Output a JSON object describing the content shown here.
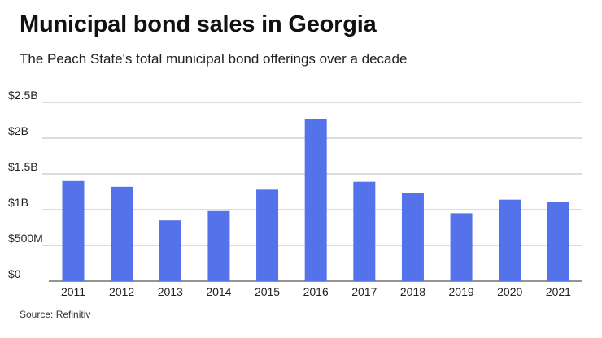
{
  "title": "Municipal bond sales in Georgia",
  "subtitle": "The Peach State's total municipal bond offerings over a decade",
  "source": "Source: Refinitiv",
  "colors": {
    "bar": "#5472ea",
    "grid": "#b8b8b8",
    "axis": "#555555",
    "text": "#222222"
  },
  "chart_data": {
    "type": "bar",
    "categories": [
      "2011",
      "2012",
      "2013",
      "2014",
      "2015",
      "2016",
      "2017",
      "2018",
      "2019",
      "2020",
      "2021"
    ],
    "values": [
      1.4,
      1.32,
      0.85,
      0.98,
      1.28,
      2.27,
      1.39,
      1.23,
      0.95,
      1.14,
      1.11
    ],
    "unit": "billions USD",
    "ylim": [
      0,
      2.5
    ],
    "yticks": [
      {
        "value": 2.5,
        "label": "$2.5B"
      },
      {
        "value": 2.0,
        "label": "$2B"
      },
      {
        "value": 1.5,
        "label": "$1.5B"
      },
      {
        "value": 1.0,
        "label": "$1B"
      },
      {
        "value": 0.5,
        "label": "$500M"
      },
      {
        "value": 0.0,
        "label": "$0"
      }
    ],
    "grid": true,
    "legend": "none"
  }
}
